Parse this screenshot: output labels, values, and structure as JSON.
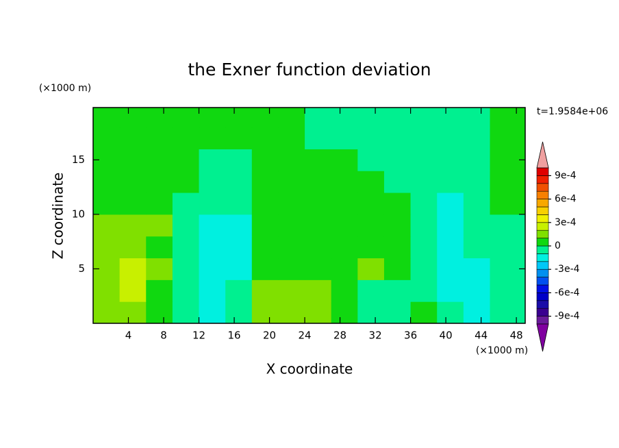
{
  "chart_data": {
    "type": "contour",
    "title": "the Exner function deviation",
    "x_label": "X coordinate",
    "y_label": "Z coordinate",
    "x_unit": "(×1000 m)",
    "y_unit": "(×1000 m)",
    "annotation": "t=1.9584e+06",
    "xlim": [
      0,
      49
    ],
    "ylim": [
      0,
      19.8
    ],
    "xticks": [
      4,
      8,
      12,
      16,
      20,
      24,
      28,
      32,
      36,
      40,
      44,
      48
    ],
    "yticks": [
      5,
      10,
      15
    ],
    "x": [
      1.5,
      4.5,
      7.5,
      10.5,
      13.5,
      16.5,
      19.5,
      22.5,
      25.5,
      28.5,
      31.5,
      34.5,
      37.5,
      40.5,
      43.5,
      46.5
    ],
    "y": [
      1,
      3,
      5,
      7,
      9,
      11,
      13,
      15,
      17,
      19
    ],
    "z": [
      [
        0.00015,
        0.00015,
        5e-05,
        -5e-05,
        -0.00015,
        -5e-05,
        0.00015,
        0.00015,
        0.00015,
        5e-05,
        -5e-05,
        -5e-05,
        5e-05,
        -5e-05,
        -0.00015,
        -5e-05
      ],
      [
        0.00015,
        0.00025,
        5e-05,
        -5e-05,
        -0.00015,
        -5e-05,
        0.00015,
        0.00015,
        0.00015,
        5e-05,
        -5e-05,
        -5e-05,
        -5e-05,
        -0.00015,
        -0.00015,
        -5e-05
      ],
      [
        0.00015,
        0.00025,
        0.00015,
        -5e-05,
        -0.00015,
        -0.00015,
        5e-05,
        5e-05,
        5e-05,
        5e-05,
        0.00015,
        5e-05,
        -5e-05,
        -0.00015,
        -0.00015,
        -5e-05
      ],
      [
        0.00015,
        0.00015,
        5e-05,
        -5e-05,
        -0.00015,
        -0.00015,
        5e-05,
        5e-05,
        5e-05,
        5e-05,
        5e-05,
        5e-05,
        -5e-05,
        -0.00015,
        -5e-05,
        -5e-05
      ],
      [
        0.00015,
        0.00015,
        0.00015,
        -5e-05,
        -0.00015,
        -0.00015,
        5e-05,
        5e-05,
        5e-05,
        5e-05,
        5e-05,
        5e-05,
        -5e-05,
        -0.00015,
        -5e-05,
        -5e-05
      ],
      [
        5e-05,
        5e-05,
        5e-05,
        -5e-05,
        -5e-05,
        -5e-05,
        5e-05,
        5e-05,
        5e-05,
        5e-05,
        5e-05,
        5e-05,
        -5e-05,
        -0.00015,
        -5e-05,
        5e-05
      ],
      [
        5e-05,
        5e-05,
        5e-05,
        5e-05,
        -5e-05,
        -5e-05,
        5e-05,
        5e-05,
        5e-05,
        5e-05,
        5e-05,
        -5e-05,
        -5e-05,
        -5e-05,
        -5e-05,
        5e-05
      ],
      [
        5e-05,
        5e-05,
        5e-05,
        5e-05,
        -5e-05,
        -5e-05,
        5e-05,
        5e-05,
        5e-05,
        5e-05,
        -5e-05,
        -5e-05,
        -5e-05,
        -5e-05,
        -5e-05,
        5e-05
      ],
      [
        5e-05,
        5e-05,
        5e-05,
        5e-05,
        5e-05,
        5e-05,
        5e-05,
        5e-05,
        -5e-05,
        -5e-05,
        -5e-05,
        -5e-05,
        -5e-05,
        -5e-05,
        -5e-05,
        5e-05
      ],
      [
        5e-05,
        5e-05,
        5e-05,
        5e-05,
        5e-05,
        5e-05,
        5e-05,
        5e-05,
        -5e-05,
        -5e-05,
        -5e-05,
        -5e-05,
        -5e-05,
        -5e-05,
        -5e-05,
        5e-05
      ]
    ],
    "levels": [
      -0.001,
      -0.0009,
      -0.0008,
      -0.0007,
      -0.0006,
      -0.0005,
      -0.0004,
      -0.0003,
      -0.0002,
      -0.0001,
      0,
      0.0001,
      0.0002,
      0.0003,
      0.0004,
      0.0005,
      0.0006,
      0.0007,
      0.0008,
      0.0009,
      0.001
    ],
    "colors": [
      "#6a1b9a",
      "#3a0090",
      "#1a0ca8",
      "#0000c8",
      "#0010e6",
      "#0050f0",
      "#0090f0",
      "#00c8f8",
      "#00f0e0",
      "#00f090",
      "#10d810",
      "#80e000",
      "#c8f000",
      "#f0f000",
      "#f8d000",
      "#f8a800",
      "#f88000",
      "#f05000",
      "#f02000",
      "#e00000"
    ],
    "over_color": "#f0a0a0",
    "under_color": "#8000a0",
    "colorbar_ticks": [
      {
        "value": 0.0009,
        "label": "9e-4"
      },
      {
        "value": 0.0006,
        "label": "6e-4"
      },
      {
        "value": 0.0003,
        "label": "3e-4"
      },
      0,
      {
        "value": -0.0003,
        "label": "-3e-4"
      },
      {
        "value": -0.0006,
        "label": "-6e-4"
      },
      {
        "value": -0.0009,
        "label": "-9e-4"
      }
    ]
  }
}
